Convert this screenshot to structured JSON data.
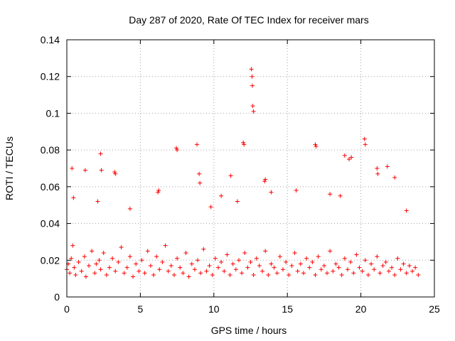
{
  "chart_data": {
    "type": "scatter",
    "title": "Day 287 of 2020, Rate Of TEC Index for receiver mars",
    "xlabel": "GPS time / hours",
    "ylabel": "ROTI / TECUs",
    "xlim": [
      0,
      25
    ],
    "ylim": [
      0,
      0.14
    ],
    "x_ticks": [
      0,
      5,
      10,
      15,
      20,
      25
    ],
    "y_ticks": [
      0,
      0.02,
      0.04,
      0.06,
      0.08,
      0.1,
      0.12,
      0.14
    ],
    "x_tick_labels": [
      "0",
      "5",
      "10",
      "15",
      "20",
      "25"
    ],
    "y_tick_labels": [
      "0",
      "0.02",
      "0.04",
      "0.06",
      "0.08",
      "0.1",
      "0.12",
      "0.14"
    ],
    "grid": true,
    "marker": "+",
    "color": "#ff0000",
    "series": [
      {
        "x": [
          0.0,
          0.1,
          0.2,
          0.3,
          0.4,
          0.5,
          0.6,
          0.8,
          1.0,
          1.2,
          1.3,
          1.5,
          1.7,
          1.9,
          2.0,
          2.2,
          2.3,
          2.5,
          2.7,
          2.9,
          3.1,
          3.3,
          3.5,
          3.7,
          3.9,
          4.1,
          4.3,
          4.5,
          4.7,
          4.9,
          5.1,
          5.3,
          5.5,
          5.7,
          5.9,
          6.1,
          6.3,
          6.5,
          6.7,
          6.9,
          7.1,
          7.3,
          7.5,
          7.7,
          7.9,
          8.1,
          8.3,
          8.5,
          8.7,
          8.9,
          9.1,
          9.3,
          9.5,
          9.7,
          9.9,
          10.1,
          10.3,
          10.5,
          10.7,
          10.9,
          11.1,
          11.3,
          11.5,
          11.7,
          11.9,
          12.1,
          12.3,
          12.5,
          12.7,
          12.9,
          13.1,
          13.3,
          13.5,
          13.7,
          13.9,
          14.1,
          14.3,
          14.5,
          14.7,
          14.9,
          15.1,
          15.3,
          15.5,
          15.7,
          15.9,
          16.1,
          16.3,
          16.5,
          16.7,
          16.9,
          17.1,
          17.3,
          17.5,
          17.7,
          17.9,
          18.1,
          18.3,
          18.5,
          18.7,
          18.9,
          19.1,
          19.3,
          19.5,
          19.7,
          19.9,
          20.1,
          20.3,
          20.5,
          20.7,
          20.9,
          21.1,
          21.3,
          21.5,
          21.7,
          21.9,
          22.1,
          22.3,
          22.5,
          22.7,
          22.9,
          23.1,
          23.3,
          23.5,
          23.7,
          23.9,
          0.35,
          0.45,
          1.25,
          2.3,
          2.35,
          3.25,
          3.3,
          6.2,
          6.25,
          7.45,
          7.5,
          8.85,
          9.0,
          9.05,
          11.15,
          12.0,
          12.05,
          12.55,
          12.6,
          12.62,
          12.65,
          12.7,
          13.45,
          13.5,
          16.9,
          16.95,
          18.9,
          19.2,
          19.35,
          20.25,
          20.3,
          21.1,
          21.15,
          21.8,
          22.3,
          2.1,
          4.3,
          9.8,
          10.5,
          11.6,
          13.9,
          15.6,
          17.9,
          18.6,
          23.1
        ],
        "y": [
          0.015,
          0.018,
          0.013,
          0.021,
          0.028,
          0.016,
          0.012,
          0.019,
          0.014,
          0.022,
          0.011,
          0.017,
          0.025,
          0.013,
          0.018,
          0.02,
          0.015,
          0.024,
          0.012,
          0.016,
          0.021,
          0.014,
          0.019,
          0.027,
          0.013,
          0.016,
          0.022,
          0.011,
          0.018,
          0.014,
          0.02,
          0.013,
          0.025,
          0.017,
          0.012,
          0.022,
          0.015,
          0.019,
          0.028,
          0.014,
          0.017,
          0.012,
          0.021,
          0.016,
          0.013,
          0.024,
          0.011,
          0.018,
          0.015,
          0.02,
          0.013,
          0.026,
          0.014,
          0.017,
          0.012,
          0.021,
          0.016,
          0.019,
          0.014,
          0.023,
          0.012,
          0.018,
          0.015,
          0.02,
          0.013,
          0.024,
          0.016,
          0.019,
          0.012,
          0.021,
          0.017,
          0.014,
          0.025,
          0.012,
          0.018,
          0.016,
          0.013,
          0.022,
          0.015,
          0.019,
          0.012,
          0.017,
          0.024,
          0.014,
          0.018,
          0.013,
          0.021,
          0.016,
          0.019,
          0.012,
          0.022,
          0.015,
          0.017,
          0.013,
          0.025,
          0.014,
          0.018,
          0.016,
          0.012,
          0.021,
          0.015,
          0.019,
          0.013,
          0.023,
          0.016,
          0.014,
          0.02,
          0.012,
          0.018,
          0.015,
          0.022,
          0.013,
          0.017,
          0.019,
          0.014,
          0.016,
          0.012,
          0.021,
          0.015,
          0.018,
          0.013,
          0.017,
          0.014,
          0.016,
          0.012,
          0.07,
          0.054,
          0.069,
          0.078,
          0.069,
          0.068,
          0.067,
          0.057,
          0.058,
          0.081,
          0.08,
          0.083,
          0.067,
          0.062,
          0.066,
          0.084,
          0.083,
          0.124,
          0.12,
          0.115,
          0.104,
          0.101,
          0.063,
          0.064,
          0.083,
          0.082,
          0.077,
          0.075,
          0.076,
          0.086,
          0.083,
          0.07,
          0.067,
          0.071,
          0.065,
          0.052,
          0.048,
          0.049,
          0.055,
          0.052,
          0.057,
          0.058,
          0.056,
          0.055,
          0.047
        ]
      }
    ]
  }
}
